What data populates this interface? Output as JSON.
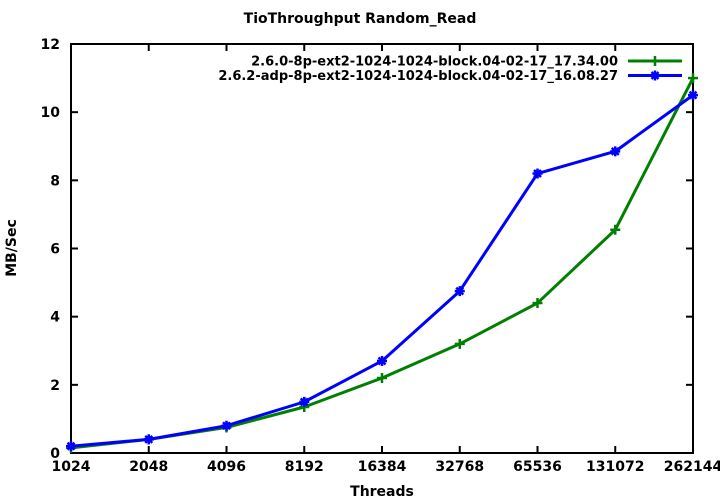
{
  "chart_data": {
    "type": "line",
    "title": "TioThroughput Random_Read",
    "xlabel": "Threads",
    "ylabel": "MB/Sec",
    "categories": [
      "1024",
      "2048",
      "4096",
      "8192",
      "16384",
      "32768",
      "65536",
      "131072",
      "262144"
    ],
    "x_scale": "log2-categorical (powers of two, evenly spaced)",
    "ylim": [
      0,
      12
    ],
    "yticks": [
      0,
      2,
      4,
      6,
      8,
      10,
      12
    ],
    "grid": false,
    "legend_position": "top-right inside plot",
    "background": "#ffffff",
    "axis_color": "#000000",
    "series": [
      {
        "name": "2.6.0-8p-ext2-1024-1024-block.04-02-17_17.34.00",
        "color": "#008000",
        "marker": "plus",
        "values": [
          0.15,
          0.4,
          0.75,
          1.35,
          2.2,
          3.2,
          4.4,
          6.55,
          11.0
        ]
      },
      {
        "name": "2.6.2-adp-8p-ext2-1024-1024-block.04-02-17_16.08.27",
        "color": "#0000ff",
        "marker": "asterisk",
        "values": [
          0.2,
          0.4,
          0.8,
          1.5,
          2.7,
          4.75,
          8.2,
          8.85,
          10.5
        ]
      }
    ]
  }
}
